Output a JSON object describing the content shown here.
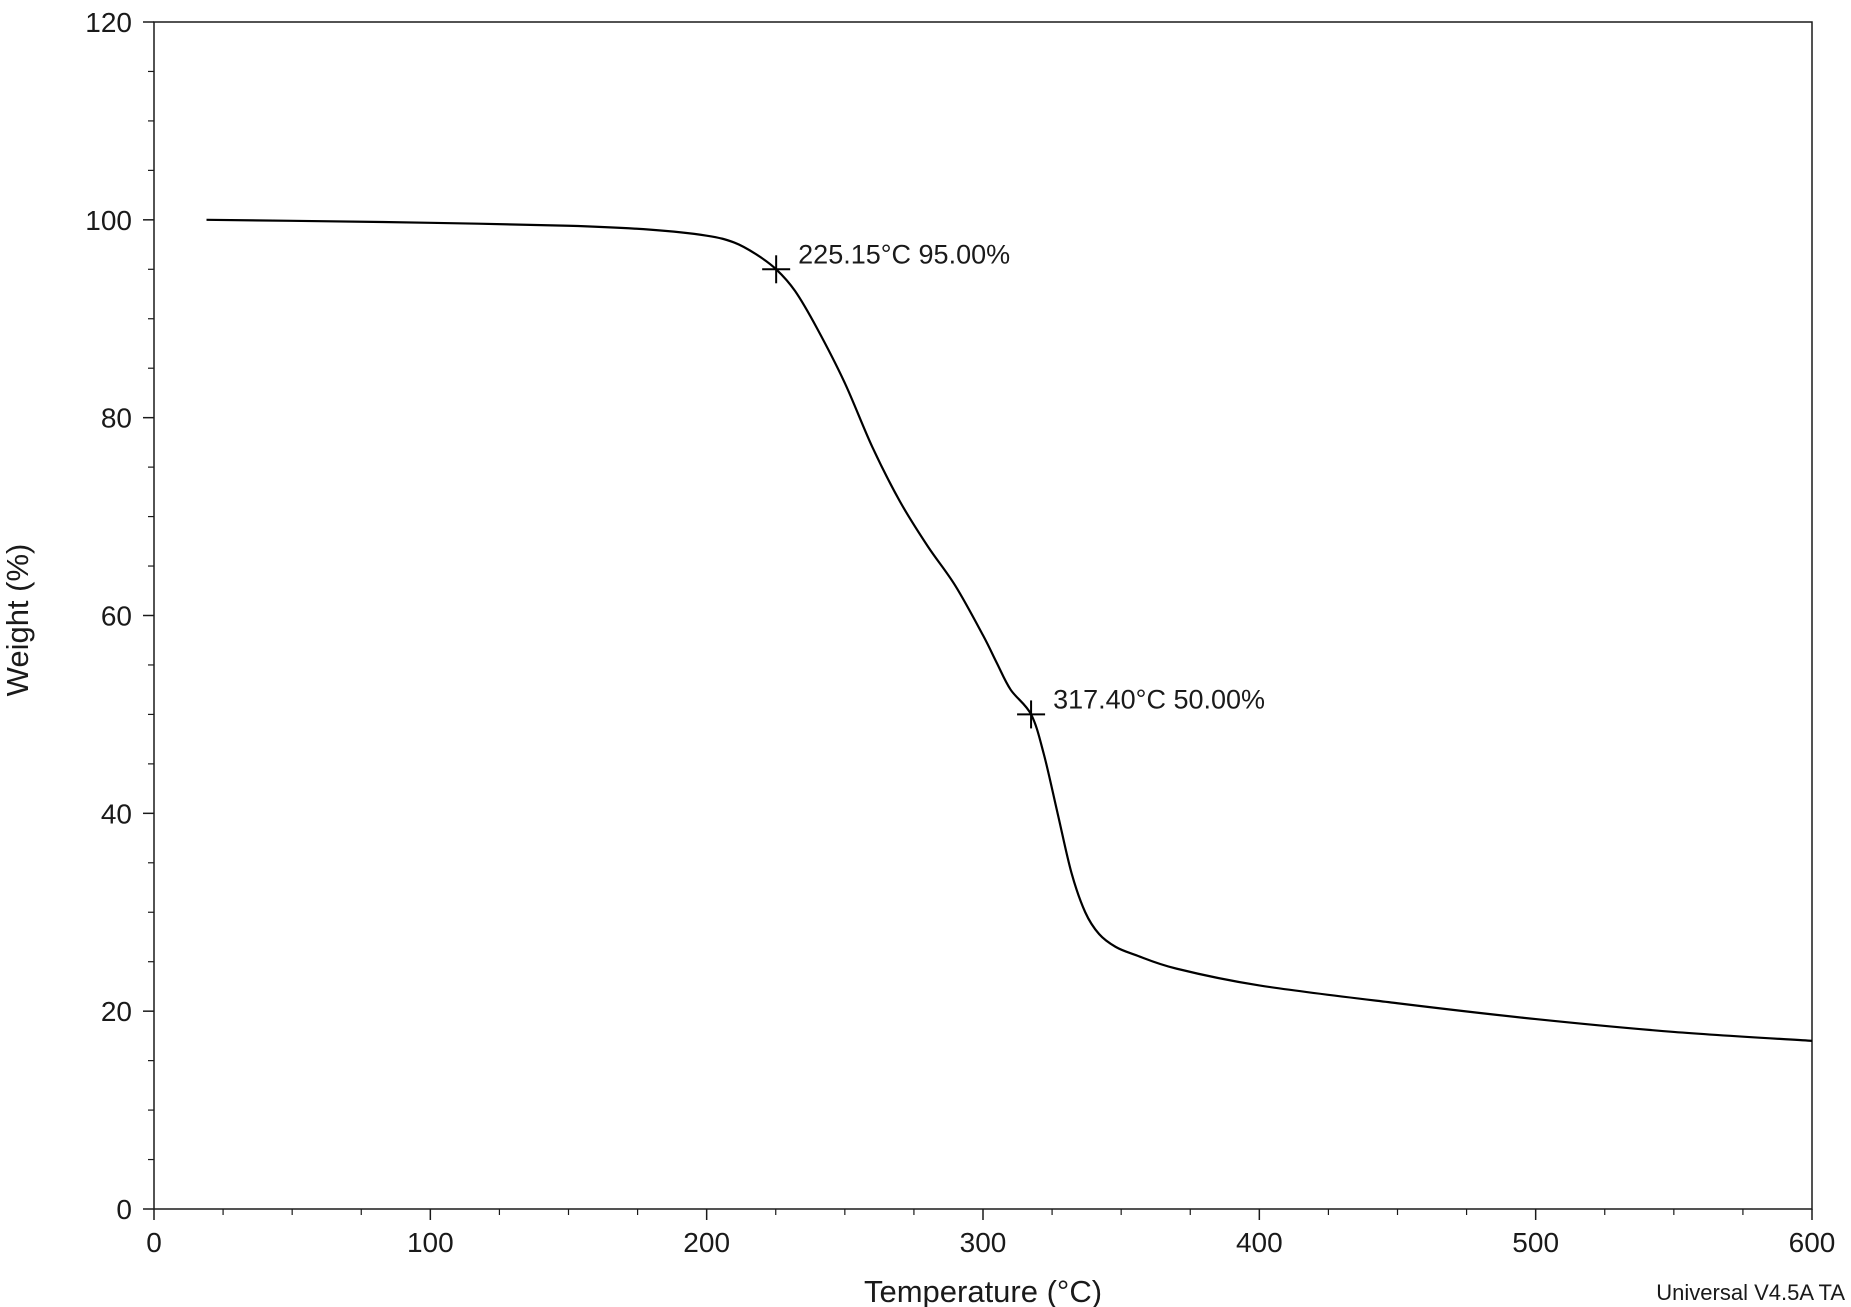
{
  "chart_data": {
    "type": "line",
    "xlabel": "Temperature (°C)",
    "ylabel": "Weight (%)",
    "xlim": [
      0,
      600
    ],
    "ylim": [
      0,
      120
    ],
    "xticks": [
      0,
      100,
      200,
      300,
      400,
      500,
      600
    ],
    "yticks": [
      0,
      20,
      40,
      60,
      80,
      100,
      120
    ],
    "grid": false,
    "series": [
      {
        "x": [
          19,
          50,
          100,
          150,
          180,
          200,
          210,
          218,
          225.15,
          232,
          240,
          250,
          260,
          270,
          280,
          290,
          300,
          305,
          310,
          317.4,
          322,
          327,
          332,
          337,
          342,
          348,
          355,
          370,
          400,
          450,
          500,
          550,
          600
        ],
        "y": [
          100.0,
          99.9,
          99.7,
          99.4,
          99.0,
          98.4,
          97.7,
          96.5,
          95.0,
          92.8,
          89.0,
          83.5,
          77.0,
          71.5,
          67.0,
          63.0,
          58.0,
          55.2,
          52.5,
          50.0,
          46.0,
          40.0,
          34.0,
          30.0,
          27.8,
          26.5,
          25.7,
          24.3,
          22.6,
          20.8,
          19.2,
          17.9,
          17.0
        ]
      }
    ],
    "annotations": [
      {
        "x": 225.15,
        "y": 95.0,
        "text": "225.15°C 95.00%"
      },
      {
        "x": 317.4,
        "y": 50.0,
        "text": "317.40°C 50.00%"
      }
    ]
  },
  "footer_text": "Universal V4.5A TA"
}
